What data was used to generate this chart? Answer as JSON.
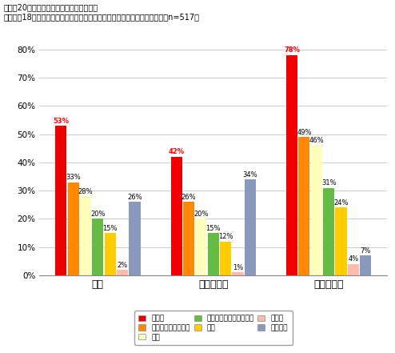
{
  "title_line1": "現在は20歳以上に認められているもので、",
  "title_line2": "あなたが18歳以上に認めてもよいと思うものはありますか。【複数回答】（n=517）",
  "groups": [
    "全体",
    "現状肯定派",
    "引き下げ派"
  ],
  "series_order": [
    "選挙権",
    "親の同意なしの結婚",
    "飲酒",
    "競馬など公営ギャンブル",
    "喫煙",
    "その他",
    "特にない"
  ],
  "series_colors": {
    "選挙権": "#EE0000",
    "親の同意なしの結婚": "#FF8800",
    "飲酒": "#FFFFBB",
    "競馬など公営ギャンブル": "#66BB44",
    "喫煙": "#FFCC00",
    "その他": "#FFBBAA",
    "特にない": "#8899BB"
  },
  "values": {
    "選挙権": [
      53,
      42,
      78
    ],
    "親の同意なしの結婚": [
      33,
      26,
      49
    ],
    "飲酒": [
      28,
      20,
      46
    ],
    "競馬など公営ギャンブル": [
      20,
      15,
      31
    ],
    "喫煙": [
      15,
      12,
      24
    ],
    "その他": [
      2,
      1,
      4
    ],
    "特にない": [
      26,
      34,
      7
    ]
  },
  "ylim": [
    0,
    80
  ],
  "yticks": [
    0,
    10,
    20,
    30,
    40,
    50,
    60,
    70,
    80
  ],
  "legend_order": [
    [
      "選挙権",
      "親の同意なしの結婚",
      "飲酒"
    ],
    [
      "競馬など公営ギャンブル",
      "喫煙",
      "その他"
    ],
    [
      "特にない",
      "",
      ""
    ]
  ],
  "background_color": "#FFFFFF",
  "grid_color": "#CCCCCC"
}
